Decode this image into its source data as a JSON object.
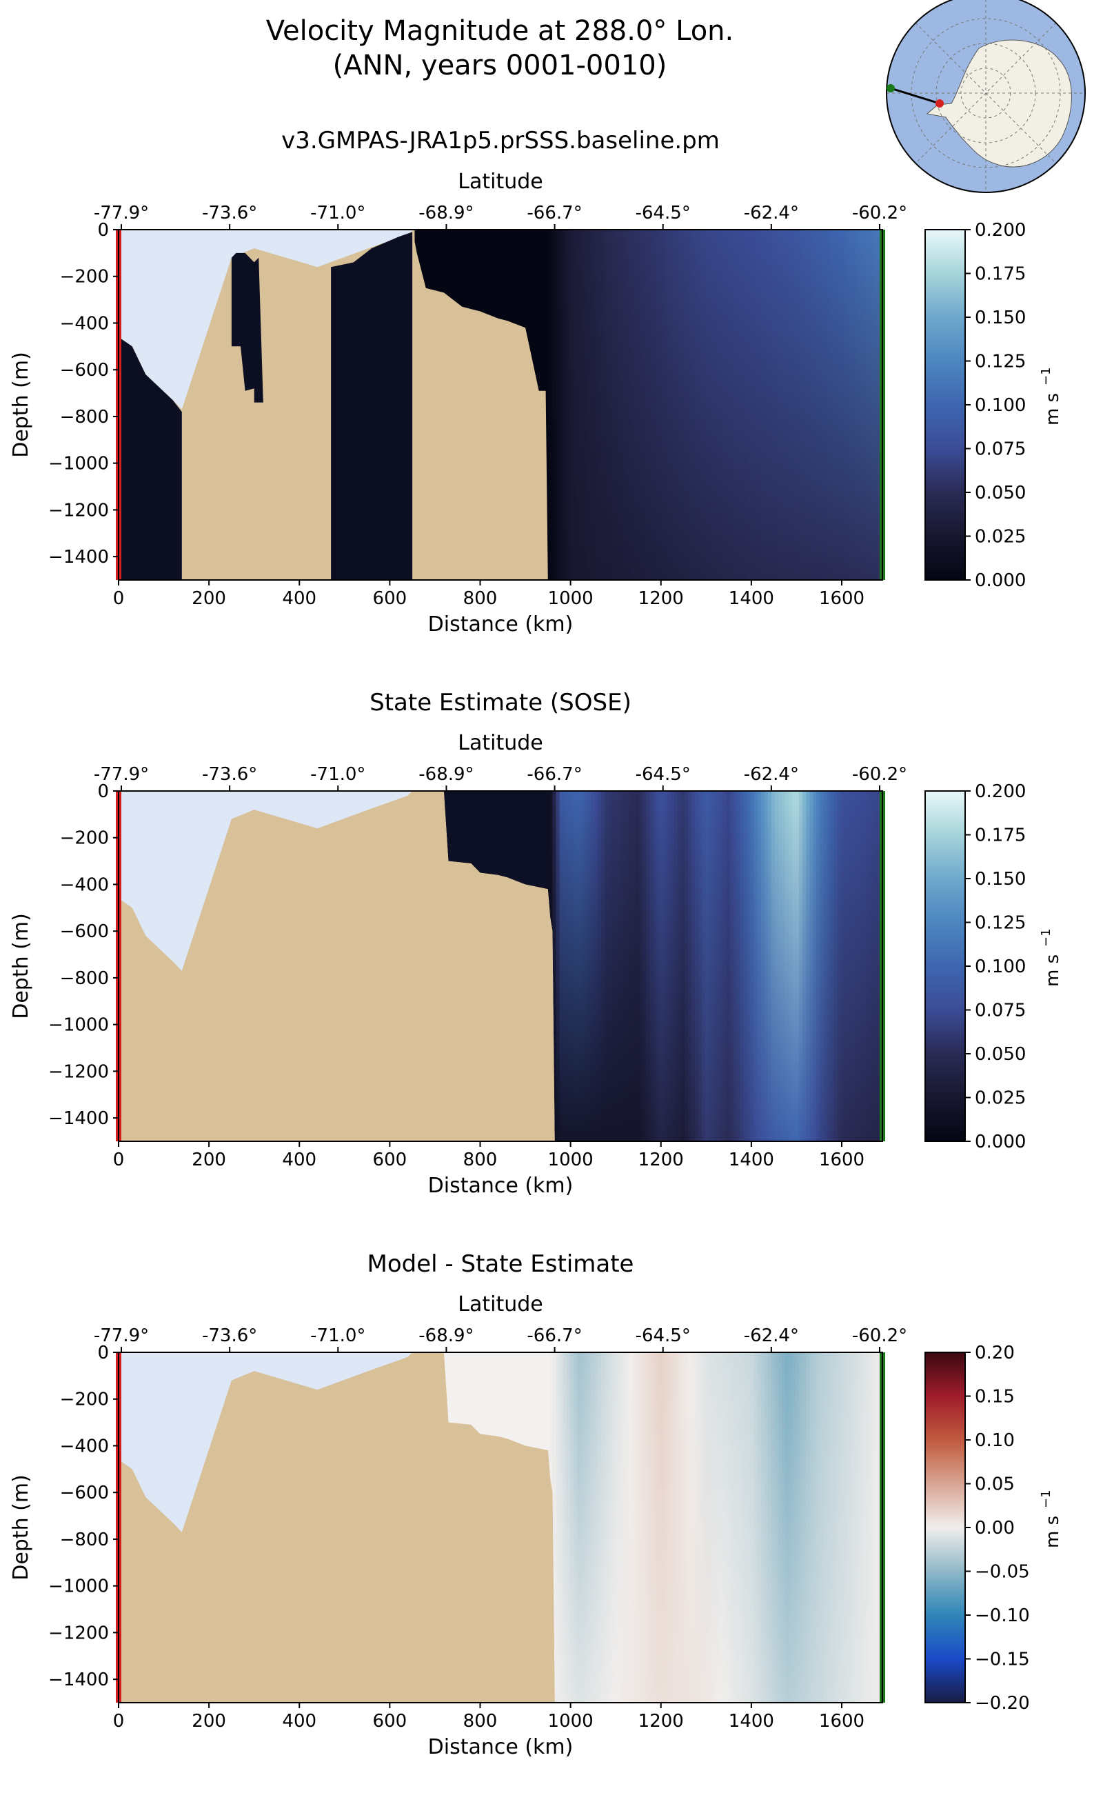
{
  "figure": {
    "title_line1": "Velocity Magnitude at 288.0° Lon.",
    "title_line2": "(ANN, years 0001-0010)"
  },
  "colors": {
    "land": "#d8c098",
    "ice_shelf_cavity": "#dde7f6",
    "ocean_map": "#9db8e2",
    "antarctica_map": "#f2f0e4",
    "start_marker": "#d42020",
    "end_marker": "#1a7a1a"
  },
  "chart_data": [
    {
      "type": "heatmap",
      "title": "v3.GMPAS-JRA1p5.prSSS.baseline.pm",
      "xlabel": "Distance (km)",
      "ylabel": "Depth (m)",
      "top_axis_label": "Latitude",
      "top_ticks": [
        "-77.9°",
        "-73.6°",
        "-71.0°",
        "-68.9°",
        "-66.7°",
        "-64.5°",
        "-62.4°",
        "-60.2°"
      ],
      "xlim": [
        0,
        1690
      ],
      "ylim": [
        -1500,
        0
      ],
      "x_ticks": [
        0,
        200,
        400,
        600,
        800,
        1000,
        1200,
        1400,
        1600
      ],
      "y_ticks": [
        0,
        -200,
        -400,
        -600,
        -800,
        -1000,
        -1200,
        -1400
      ],
      "colormap": "ice",
      "colorbar_label": "m s",
      "colorbar_exponent": "−1",
      "colorbar_range": [
        0.0,
        0.2
      ],
      "colorbar_ticks": [
        "0.000",
        "0.025",
        "0.050",
        "0.075",
        "0.100",
        "0.125",
        "0.150",
        "0.175",
        "0.200"
      ],
      "field_x_km": [
        0,
        950,
        1000,
        1100,
        1200,
        1300,
        1400,
        1500,
        1600,
        1690
      ],
      "field_surface_ms": [
        0.0,
        0.0,
        0.03,
        0.05,
        0.06,
        0.07,
        0.075,
        0.085,
        0.1,
        0.115
      ],
      "field_bottom_ms": [
        0.0,
        0.0,
        0.025,
        0.03,
        0.035,
        0.04,
        0.045,
        0.048,
        0.05,
        0.052
      ]
    },
    {
      "type": "heatmap",
      "title": "State Estimate (SOSE)",
      "xlabel": "Distance (km)",
      "ylabel": "Depth (m)",
      "top_axis_label": "Latitude",
      "top_ticks": [
        "-77.9°",
        "-73.6°",
        "-71.0°",
        "-68.9°",
        "-66.7°",
        "-64.5°",
        "-62.4°",
        "-60.2°"
      ],
      "xlim": [
        0,
        1690
      ],
      "ylim": [
        -1500,
        0
      ],
      "x_ticks": [
        0,
        200,
        400,
        600,
        800,
        1000,
        1200,
        1400,
        1600
      ],
      "y_ticks": [
        0,
        -200,
        -400,
        -600,
        -800,
        -1000,
        -1200,
        -1400
      ],
      "colormap": "ice",
      "colorbar_label": "m s",
      "colorbar_exponent": "−1",
      "colorbar_range": [
        0.0,
        0.2
      ],
      "colorbar_ticks": [
        "0.000",
        "0.025",
        "0.050",
        "0.075",
        "0.100",
        "0.125",
        "0.150",
        "0.175",
        "0.200"
      ],
      "field_x_km": [
        0,
        950,
        980,
        1020,
        1080,
        1150,
        1200,
        1250,
        1300,
        1350,
        1400,
        1450,
        1500,
        1550,
        1600,
        1690
      ],
      "field_surface_ms": [
        0.0,
        0.0,
        0.09,
        0.1,
        0.06,
        0.05,
        0.08,
        0.06,
        0.09,
        0.07,
        0.11,
        0.16,
        0.18,
        0.12,
        0.08,
        0.07
      ],
      "field_bottom_ms": [
        0.0,
        0.0,
        0.02,
        0.02,
        0.02,
        0.02,
        0.04,
        0.03,
        0.06,
        0.05,
        0.07,
        0.09,
        0.1,
        0.07,
        0.05,
        0.04
      ]
    },
    {
      "type": "heatmap",
      "title": "Model - State Estimate",
      "xlabel": "Distance (km)",
      "ylabel": "Depth (m)",
      "top_axis_label": "Latitude",
      "top_ticks": [
        "-77.9°",
        "-73.6°",
        "-71.0°",
        "-68.9°",
        "-66.7°",
        "-64.5°",
        "-62.4°",
        "-60.2°"
      ],
      "xlim": [
        0,
        1690
      ],
      "ylim": [
        -1500,
        0
      ],
      "x_ticks": [
        0,
        200,
        400,
        600,
        800,
        1000,
        1200,
        1400,
        1600
      ],
      "y_ticks": [
        0,
        -200,
        -400,
        -600,
        -800,
        -1000,
        -1200,
        -1400
      ],
      "colormap": "balance",
      "colorbar_label": "m s",
      "colorbar_exponent": "−1",
      "colorbar_range": [
        -0.2,
        0.2
      ],
      "colorbar_ticks": [
        "−0.20",
        "−0.15",
        "−0.10",
        "−0.05",
        "0.00",
        "0.05",
        "0.10",
        "0.15",
        "0.20"
      ],
      "field_x_km": [
        0,
        720,
        800,
        900,
        960,
        1020,
        1100,
        1200,
        1300,
        1400,
        1480,
        1550,
        1650,
        1690
      ],
      "field_surface_ms": [
        0.0,
        0.0,
        0.0,
        0.01,
        0.0,
        -0.04,
        -0.01,
        0.02,
        -0.01,
        -0.02,
        -0.06,
        -0.03,
        -0.01,
        0.0
      ],
      "field_bottom_ms": [
        0.0,
        0.0,
        0.0,
        0.0,
        0.0,
        -0.01,
        0.0,
        0.01,
        0.005,
        -0.01,
        -0.03,
        -0.02,
        -0.005,
        0.0
      ]
    }
  ]
}
